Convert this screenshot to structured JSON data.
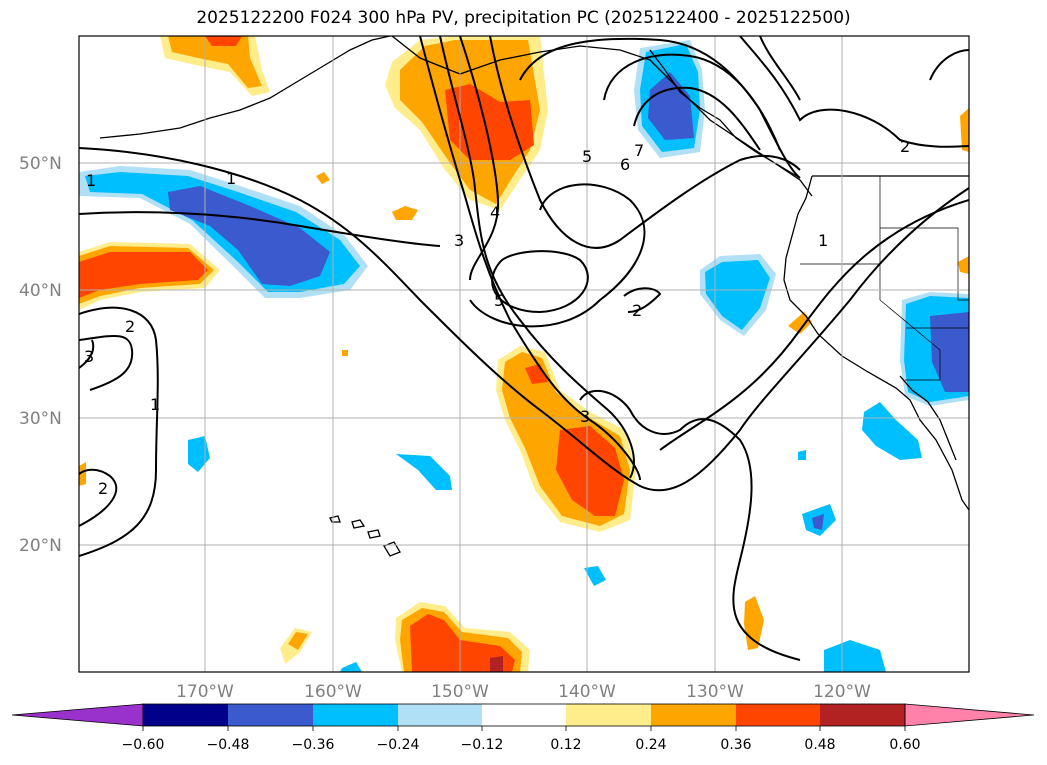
{
  "title": "2025122200 F024 300 hPa PV, precipitation PC (2025122400 - 2025122500)",
  "map": {
    "lat_labels": [
      "50°N",
      "40°N",
      "30°N",
      "20°N"
    ],
    "lon_labels": [
      "170°W",
      "160°W",
      "150°W",
      "140°W",
      "130°W",
      "120°W"
    ],
    "contour_labels": [
      "1",
      "1",
      "2",
      "2",
      "2",
      "3",
      "3",
      "3",
      "4",
      "5",
      "5",
      "6",
      "7",
      "1",
      "1",
      "2"
    ]
  },
  "colorbar": {
    "ticks": [
      "−0.60",
      "−0.48",
      "−0.36",
      "−0.24",
      "−0.12",
      "0.12",
      "0.24",
      "0.36",
      "0.48",
      "0.60"
    ],
    "colors": {
      "under": "#9932cc",
      "c1": "#00008b",
      "c2": "#3a5acd",
      "c3": "#00bfff",
      "c4": "#b0e0f5",
      "c5": "#ffffff",
      "c6": "#ffec8b",
      "c7": "#ffa500",
      "c8": "#ff4500",
      "c9": "#b22222",
      "over": "#ff82ab"
    }
  }
}
